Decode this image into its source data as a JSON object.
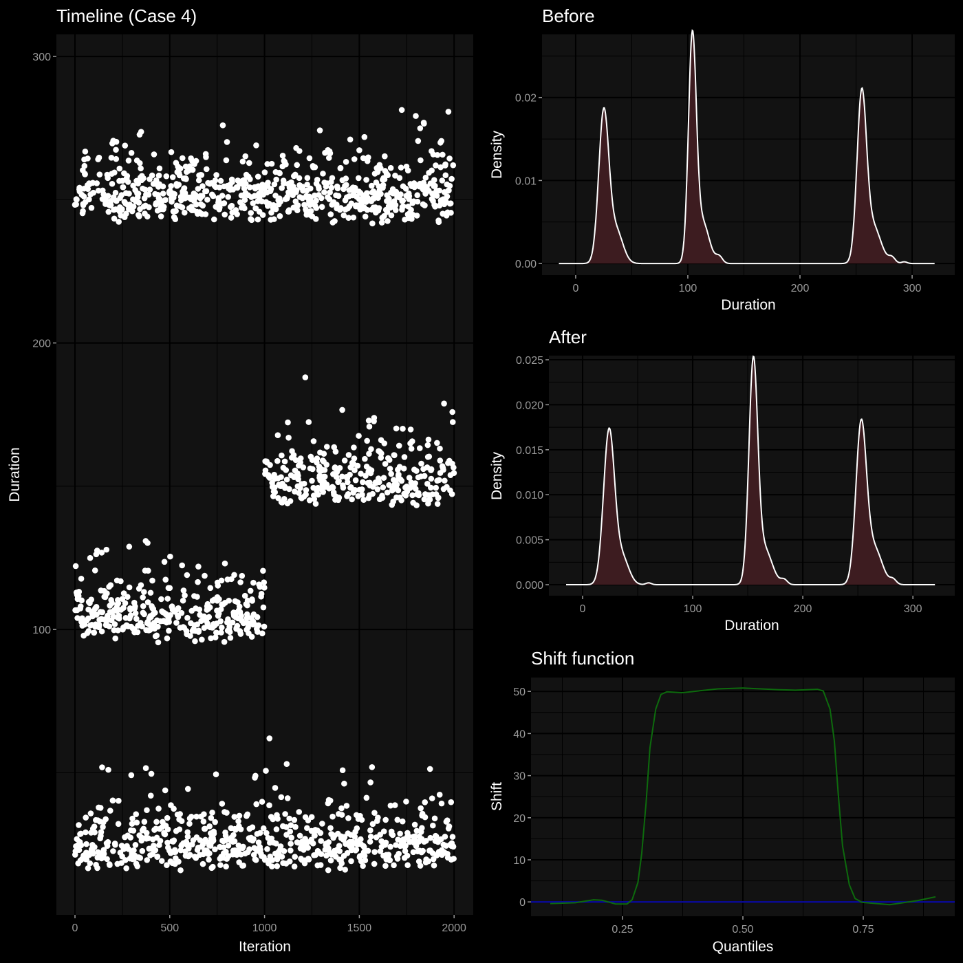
{
  "colors": {
    "background": "#000000",
    "panel": "#121212",
    "grid": "#000000",
    "points": "#ffffff",
    "density_fill": "#3d1c20",
    "density_line": "#ffffff",
    "shift_line": "#0d6b0d",
    "zero_line": "#0a0a90"
  },
  "chart_data": [
    {
      "type": "scatter",
      "title": "Timeline (Case 4)",
      "xlabel": "Iteration",
      "ylabel": "Duration",
      "xlim": [
        -98,
        2101
      ],
      "ylim": [
        0.4,
        307.7
      ],
      "xticks": [
        0,
        500,
        1000,
        1500,
        2000
      ],
      "yticks": [
        100,
        200,
        300
      ],
      "n_points": 2000,
      "clusters": [
        {
          "iter_range": [
            0,
            2000
          ],
          "min": 241,
          "typical": 255,
          "max": 295
        },
        {
          "iter_range": [
            0,
            1000
          ],
          "min": 95,
          "typical": 105,
          "max": 135
        },
        {
          "iter_range": [
            1000,
            2000
          ],
          "min": 142,
          "typical": 155,
          "max": 188
        },
        {
          "iter_range": [
            0,
            2000
          ],
          "min": 15,
          "typical": 27,
          "max": 62
        }
      ]
    },
    {
      "type": "area",
      "title": "Before",
      "xlabel": "Duration",
      "ylabel": "Density",
      "xlim": [
        -30,
        338
      ],
      "ylim": [
        -0.0014,
        0.0276
      ],
      "xticks": [
        0,
        100,
        200,
        300
      ],
      "yticks": [
        0,
        0.01,
        0.02
      ],
      "ytick_labels": [
        "0.00",
        "0.01",
        "0.02"
      ],
      "x_range": [
        -15,
        320
      ],
      "components": [
        {
          "mean": 25,
          "sd": 4.5,
          "weight": 0.203
        },
        {
          "mean": 36,
          "sd": 6,
          "weight": 0.06
        },
        {
          "mean": 104,
          "sd": 3.5,
          "weight": 0.232
        },
        {
          "mean": 113,
          "sd": 6,
          "weight": 0.075
        },
        {
          "mean": 128,
          "sd": 3,
          "weight": 0.006
        },
        {
          "mean": 255,
          "sd": 4.2,
          "weight": 0.205
        },
        {
          "mean": 265,
          "sd": 7,
          "weight": 0.079
        },
        {
          "mean": 282,
          "sd": 3,
          "weight": 0.005
        },
        {
          "mean": 293,
          "sd": 2.5,
          "weight": 0.0013
        }
      ]
    },
    {
      "type": "area",
      "title": "After",
      "xlabel": "Duration",
      "ylabel": "Density",
      "xlim": [
        -30.6,
        338
      ],
      "ylim": [
        -0.00122,
        0.02546
      ],
      "xticks": [
        0,
        100,
        200,
        300
      ],
      "yticks": [
        0,
        0.005,
        0.01,
        0.015,
        0.02,
        0.025
      ],
      "ytick_labels": [
        "0.000",
        "0.005",
        "0.010",
        "0.015",
        "0.020",
        "0.025"
      ],
      "x_range": [
        -15,
        320
      ],
      "components": [
        {
          "mean": 24,
          "sd": 5,
          "weight": 0.213
        },
        {
          "mean": 36,
          "sd": 6,
          "weight": 0.045
        },
        {
          "mean": 60,
          "sd": 2.5,
          "weight": 0.0013
        },
        {
          "mean": 155,
          "sd": 4,
          "weight": 0.24
        },
        {
          "mean": 165,
          "sd": 7,
          "weight": 0.07
        },
        {
          "mean": 183,
          "sd": 3,
          "weight": 0.004
        },
        {
          "mean": 253,
          "sd": 4.8,
          "weight": 0.21
        },
        {
          "mean": 265,
          "sd": 7,
          "weight": 0.07
        },
        {
          "mean": 282,
          "sd": 3,
          "weight": 0.004
        }
      ]
    },
    {
      "type": "line",
      "title": "Shift function",
      "xlabel": "Quantiles",
      "ylabel": "Shift",
      "xlim": [
        0.06,
        0.94
      ],
      "ylim": [
        -3.4,
        53.3
      ],
      "xticks": [
        0.25,
        0.5,
        0.75
      ],
      "xtick_labels": [
        "0.25",
        "0.50",
        "0.75"
      ],
      "yticks": [
        0,
        10,
        20,
        30,
        40,
        50
      ],
      "reference_line": 0,
      "series": [
        {
          "name": "shift",
          "points": [
            [
              0.1,
              -0.4
            ],
            [
              0.152,
              -0.2
            ],
            [
              0.19,
              0.5
            ],
            [
              0.207,
              0.4
            ],
            [
              0.236,
              -0.5
            ],
            [
              0.259,
              -0.5
            ],
            [
              0.27,
              0.5
            ],
            [
              0.282,
              4.6
            ],
            [
              0.29,
              11.6
            ],
            [
              0.299,
              23.6
            ],
            [
              0.307,
              36.6
            ],
            [
              0.319,
              45.8
            ],
            [
              0.33,
              49.3
            ],
            [
              0.342,
              49.9
            ],
            [
              0.374,
              49.7
            ],
            [
              0.448,
              50.6
            ],
            [
              0.5,
              50.8
            ],
            [
              0.575,
              50.4
            ],
            [
              0.609,
              50.3
            ],
            [
              0.655,
              50.5
            ],
            [
              0.667,
              50.1
            ],
            [
              0.681,
              45.8
            ],
            [
              0.69,
              38.2
            ],
            [
              0.698,
              25.7
            ],
            [
              0.707,
              13.3
            ],
            [
              0.721,
              4.1
            ],
            [
              0.733,
              0.8
            ],
            [
              0.747,
              -0.1
            ],
            [
              0.805,
              -0.65
            ],
            [
              0.862,
              0.3
            ],
            [
              0.9,
              1.2
            ]
          ]
        }
      ]
    }
  ]
}
